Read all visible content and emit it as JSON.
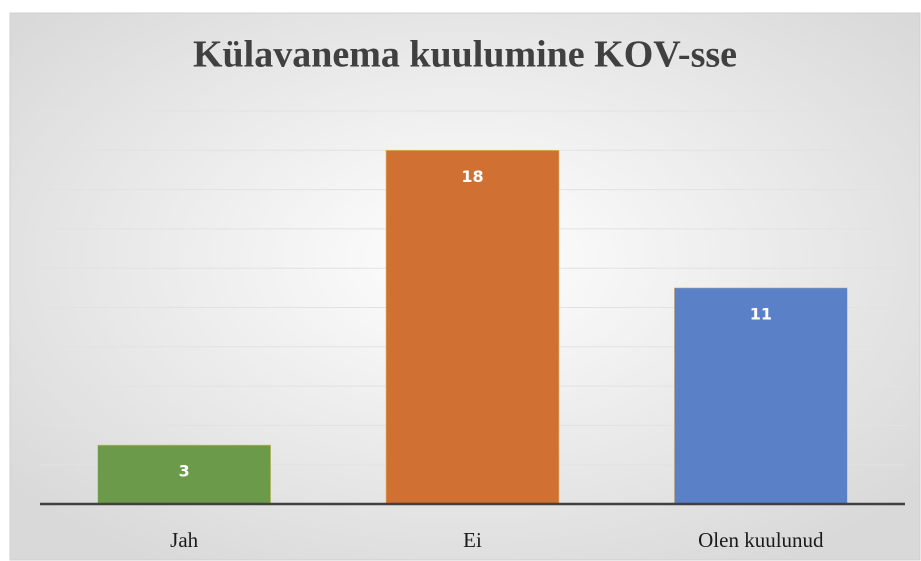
{
  "chart_data": {
    "type": "bar",
    "title": "Külavanema kuulumine KOV-sse",
    "categories": [
      "Jah",
      "Ei",
      "Olen kuulunud"
    ],
    "values": [
      3,
      18,
      11
    ],
    "colors": [
      "#6b9a4b",
      "#d07133",
      "#5a80c7"
    ],
    "ylim": [
      0,
      20
    ],
    "yticks": [
      0,
      2,
      4,
      6,
      8,
      10,
      12,
      14,
      16,
      18,
      20
    ],
    "grid": true
  }
}
